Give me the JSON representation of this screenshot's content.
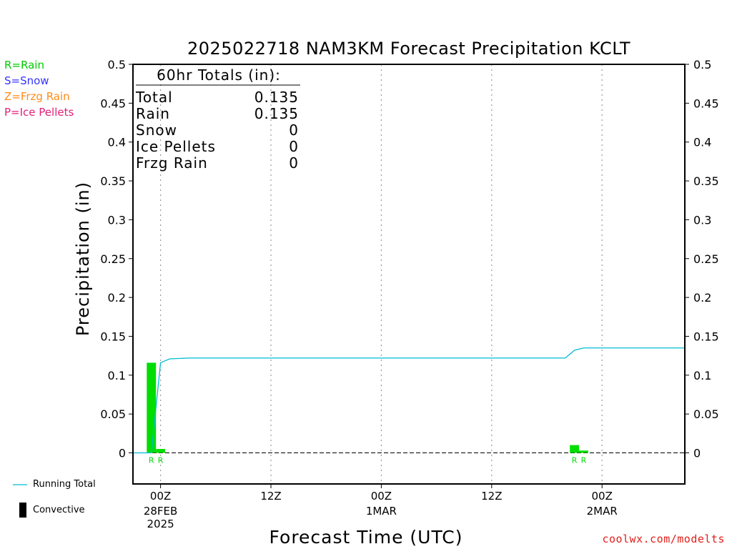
{
  "legend_types": [
    {
      "label": "R=Rain",
      "color": "#00cc00"
    },
    {
      "label": "S=Snow",
      "color": "#3333ff"
    },
    {
      "label": "Z=Frzg Rain",
      "color": "#ff8c1a"
    },
    {
      "label": "P=Ice Pellets",
      "color": "#e0207a"
    }
  ],
  "bottom_legend": {
    "running_total": "Running Total",
    "convective": "Convective"
  },
  "credit": "coolwx.com/modelts",
  "totals": {
    "header": "60hr Totals (in):",
    "rows": [
      {
        "label": "Total",
        "value": "0.135"
      },
      {
        "label": "Rain",
        "value": "0.135"
      },
      {
        "label": "Snow",
        "value": "0"
      },
      {
        "label": "Ice Pellets",
        "value": "0"
      },
      {
        "label": "Frzg Rain",
        "value": "0"
      }
    ]
  },
  "colors": {
    "rain": "#00dd00",
    "running_total": "#00bcd4",
    "grid": "#999999",
    "axis": "#000000"
  },
  "chart_data": {
    "type": "bar",
    "title": "2025022718 NAM3KM Forecast Precipitation KCLT",
    "xlabel": "Forecast Time (UTC)",
    "ylabel": "Precipitation (in)",
    "ylim": [
      -0.04,
      0.5
    ],
    "yticks": [
      "0",
      "0.05",
      "0.1",
      "0.15",
      "0.2",
      "0.25",
      "0.3",
      "0.35",
      "0.4",
      "0.45",
      "0.5"
    ],
    "x_unit": "forecast hour",
    "xlim": [
      -3,
      57
    ],
    "xticks": [
      {
        "hour": 0,
        "label": "00Z",
        "sub": [
          "28FEB",
          "2025"
        ]
      },
      {
        "hour": 12,
        "label": "12Z",
        "sub": []
      },
      {
        "hour": 24,
        "label": "00Z",
        "sub": [
          "1MAR"
        ]
      },
      {
        "hour": 36,
        "label": "12Z",
        "sub": []
      },
      {
        "hour": 48,
        "label": "00Z",
        "sub": [
          "2MAR"
        ]
      }
    ],
    "gridlines_hours": [
      0,
      12,
      24,
      36,
      48
    ],
    "bars": [
      {
        "hour_start": -2.5,
        "hour_end": -1.5,
        "value": 0.0,
        "type": ""
      },
      {
        "hour_start": -1.5,
        "hour_end": -0.5,
        "value": 0.116,
        "type": "R"
      },
      {
        "hour_start": -0.5,
        "hour_end": 0.5,
        "value": 0.005,
        "type": "R"
      },
      {
        "hour_start": 44.5,
        "hour_end": 45.5,
        "value": 0.01,
        "type": "R"
      },
      {
        "hour_start": 45.5,
        "hour_end": 46.5,
        "value": 0.003,
        "type": "R"
      }
    ],
    "series": [
      {
        "name": "Running Total",
        "x": [
          -3,
          -1,
          0,
          1,
          3,
          6,
          12,
          24,
          36,
          44,
          45,
          46,
          47,
          57
        ],
        "values": [
          0,
          0,
          0.116,
          0.121,
          0.122,
          0.122,
          0.122,
          0.122,
          0.122,
          0.122,
          0.132,
          0.135,
          0.135,
          0.135
        ]
      }
    ]
  }
}
